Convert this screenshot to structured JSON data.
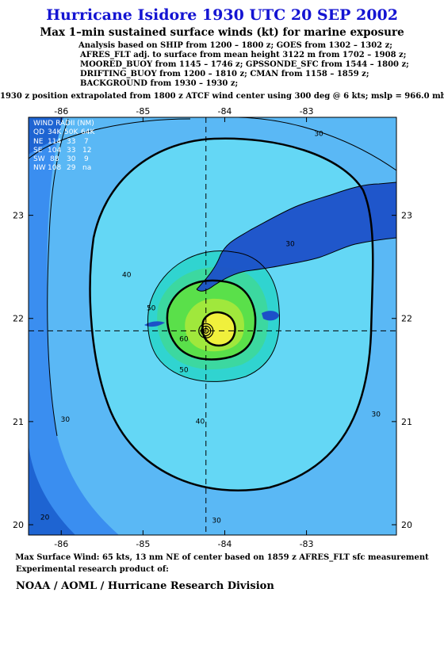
{
  "header": {
    "title": "Hurricane Isidore 1930 UTC 20 SEP 2002",
    "subtitle": "Max 1–min sustained surface winds (kt) for marine exposure",
    "analysis_lines": [
      "Analysis based on  SHIP from 1200 – 1800 z;  GOES from 1302 – 1302 z;",
      "AFRES_FLT adj. to surface from mean height 3122 m from 1702 – 1908 z;",
      "MOORED_BUOY from 1145 – 1746 z;  GPSSONDE_SFC from 1544 – 1800 z;",
      "DRIFTING_BUOY from 1200 – 1810 z;  CMAN from 1158 – 1859 z;",
      "BACKGROUND from 1930 – 1930 z;"
    ],
    "position_note": "1930 z position extrapolated from 1800 z ATCF wind center using 300 deg @ 6 kts; mslp = 966.0 mb"
  },
  "chart_data": {
    "type": "contour",
    "x_ticks": [
      "-86",
      "-85",
      "-84",
      "-83"
    ],
    "x_tick_values": [
      -86,
      -85,
      -84,
      -83
    ],
    "y_ticks": [
      "23",
      "22",
      "21",
      "20"
    ],
    "y_tick_values": [
      23,
      22,
      21,
      20
    ],
    "xlim": [
      -86.4,
      -81.9
    ],
    "ylim": [
      19.9,
      23.95
    ],
    "center": {
      "lon": -84.23,
      "lat": 21.88
    },
    "contour_labels": [
      {
        "text": "30",
        "lon": -82.85,
        "lat": 23.77
      },
      {
        "text": "30",
        "lon": -83.2,
        "lat": 22.7
      },
      {
        "text": "40",
        "lon": -85.2,
        "lat": 22.4
      },
      {
        "text": "50",
        "lon": -84.9,
        "lat": 22.08
      },
      {
        "text": "60",
        "lon": -84.5,
        "lat": 21.78
      },
      {
        "text": "50",
        "lon": -84.5,
        "lat": 21.48
      },
      {
        "text": "40",
        "lon": -84.3,
        "lat": 20.98
      },
      {
        "text": "30",
        "lon": -85.95,
        "lat": 21.0
      },
      {
        "text": "30",
        "lon": -84.1,
        "lat": 20.02
      },
      {
        "text": "30",
        "lon": -82.15,
        "lat": 21.05
      },
      {
        "text": "20",
        "lon": -86.2,
        "lat": 20.05
      }
    ],
    "wind_radii": {
      "title": "WIND RADII (NM)",
      "header": [
        "QD",
        "34K",
        "50K",
        "64K"
      ],
      "rows": [
        [
          "NE",
          "114",
          "33",
          "7"
        ],
        [
          "SE",
          "104",
          "33",
          "12"
        ],
        [
          "SW",
          "88",
          "30",
          "9"
        ],
        [
          "NW",
          "108",
          "29",
          "na"
        ]
      ]
    },
    "colors": {
      "v20": "#1e64d2",
      "v25": "#3a8ef0",
      "v30": "#5ab8f5",
      "v35": "#64d7f5",
      "v40": "#30d4d0",
      "v45": "#3cd8a0",
      "v50": "#5ae04a",
      "v55": "#a0e83c",
      "v60": "#f0f03c",
      "land": "#1c50c8"
    }
  },
  "footer": {
    "max_wind": "Max Surface Wind: 65 kts, 13 nm NE of center based on 1859 z AFRES_FLT sfc measurement",
    "research_note": "Experimental research product of:",
    "org": "NOAA / AOML / Hurricane Research Division"
  }
}
